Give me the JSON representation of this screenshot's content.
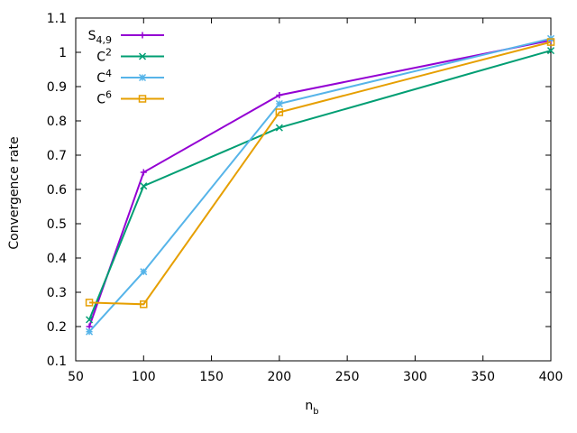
{
  "chart_data": {
    "type": "line",
    "title": "",
    "xlabel": "n",
    "xlabel_sub": "b",
    "ylabel": "Convergence rate",
    "xlim": [
      50,
      400
    ],
    "ylim": [
      0.1,
      1.1
    ],
    "x_ticks": [
      50,
      100,
      150,
      200,
      250,
      300,
      350,
      400
    ],
    "x_tick_labels": [
      "50",
      "100",
      "150",
      "200",
      "250",
      "300",
      "350",
      "400"
    ],
    "y_ticks": [
      0.1,
      0.2,
      0.3,
      0.4,
      0.5,
      0.6,
      0.7,
      0.8,
      0.9,
      1.0,
      1.1
    ],
    "y_tick_labels": [
      "0.1",
      "0.2",
      "0.3",
      "0.4",
      "0.5",
      "0.6",
      "0.7",
      "0.8",
      "0.9",
      "1",
      "1.1"
    ],
    "grid": false,
    "legend_position": "top-left",
    "series": [
      {
        "name": "S",
        "name_sub": "4,9",
        "name_sup": "",
        "color": "#9400d3",
        "marker": "plus",
        "x": [
          60,
          100,
          200,
          400
        ],
        "values": [
          0.2,
          0.65,
          0.875,
          1.035
        ]
      },
      {
        "name": "C",
        "name_sub": "",
        "name_sup": "2",
        "color": "#009e73",
        "marker": "cross",
        "x": [
          60,
          100,
          200,
          400
        ],
        "values": [
          0.22,
          0.61,
          0.78,
          1.005
        ]
      },
      {
        "name": "C",
        "name_sub": "",
        "name_sup": "4",
        "color": "#56b4e9",
        "marker": "star",
        "x": [
          60,
          100,
          200,
          400
        ],
        "values": [
          0.185,
          0.36,
          0.85,
          1.04
        ]
      },
      {
        "name": "C",
        "name_sub": "",
        "name_sup": "6",
        "color": "#e69f00",
        "marker": "square",
        "x": [
          60,
          100,
          200,
          400
        ],
        "values": [
          0.27,
          0.265,
          0.825,
          1.03
        ]
      }
    ]
  }
}
